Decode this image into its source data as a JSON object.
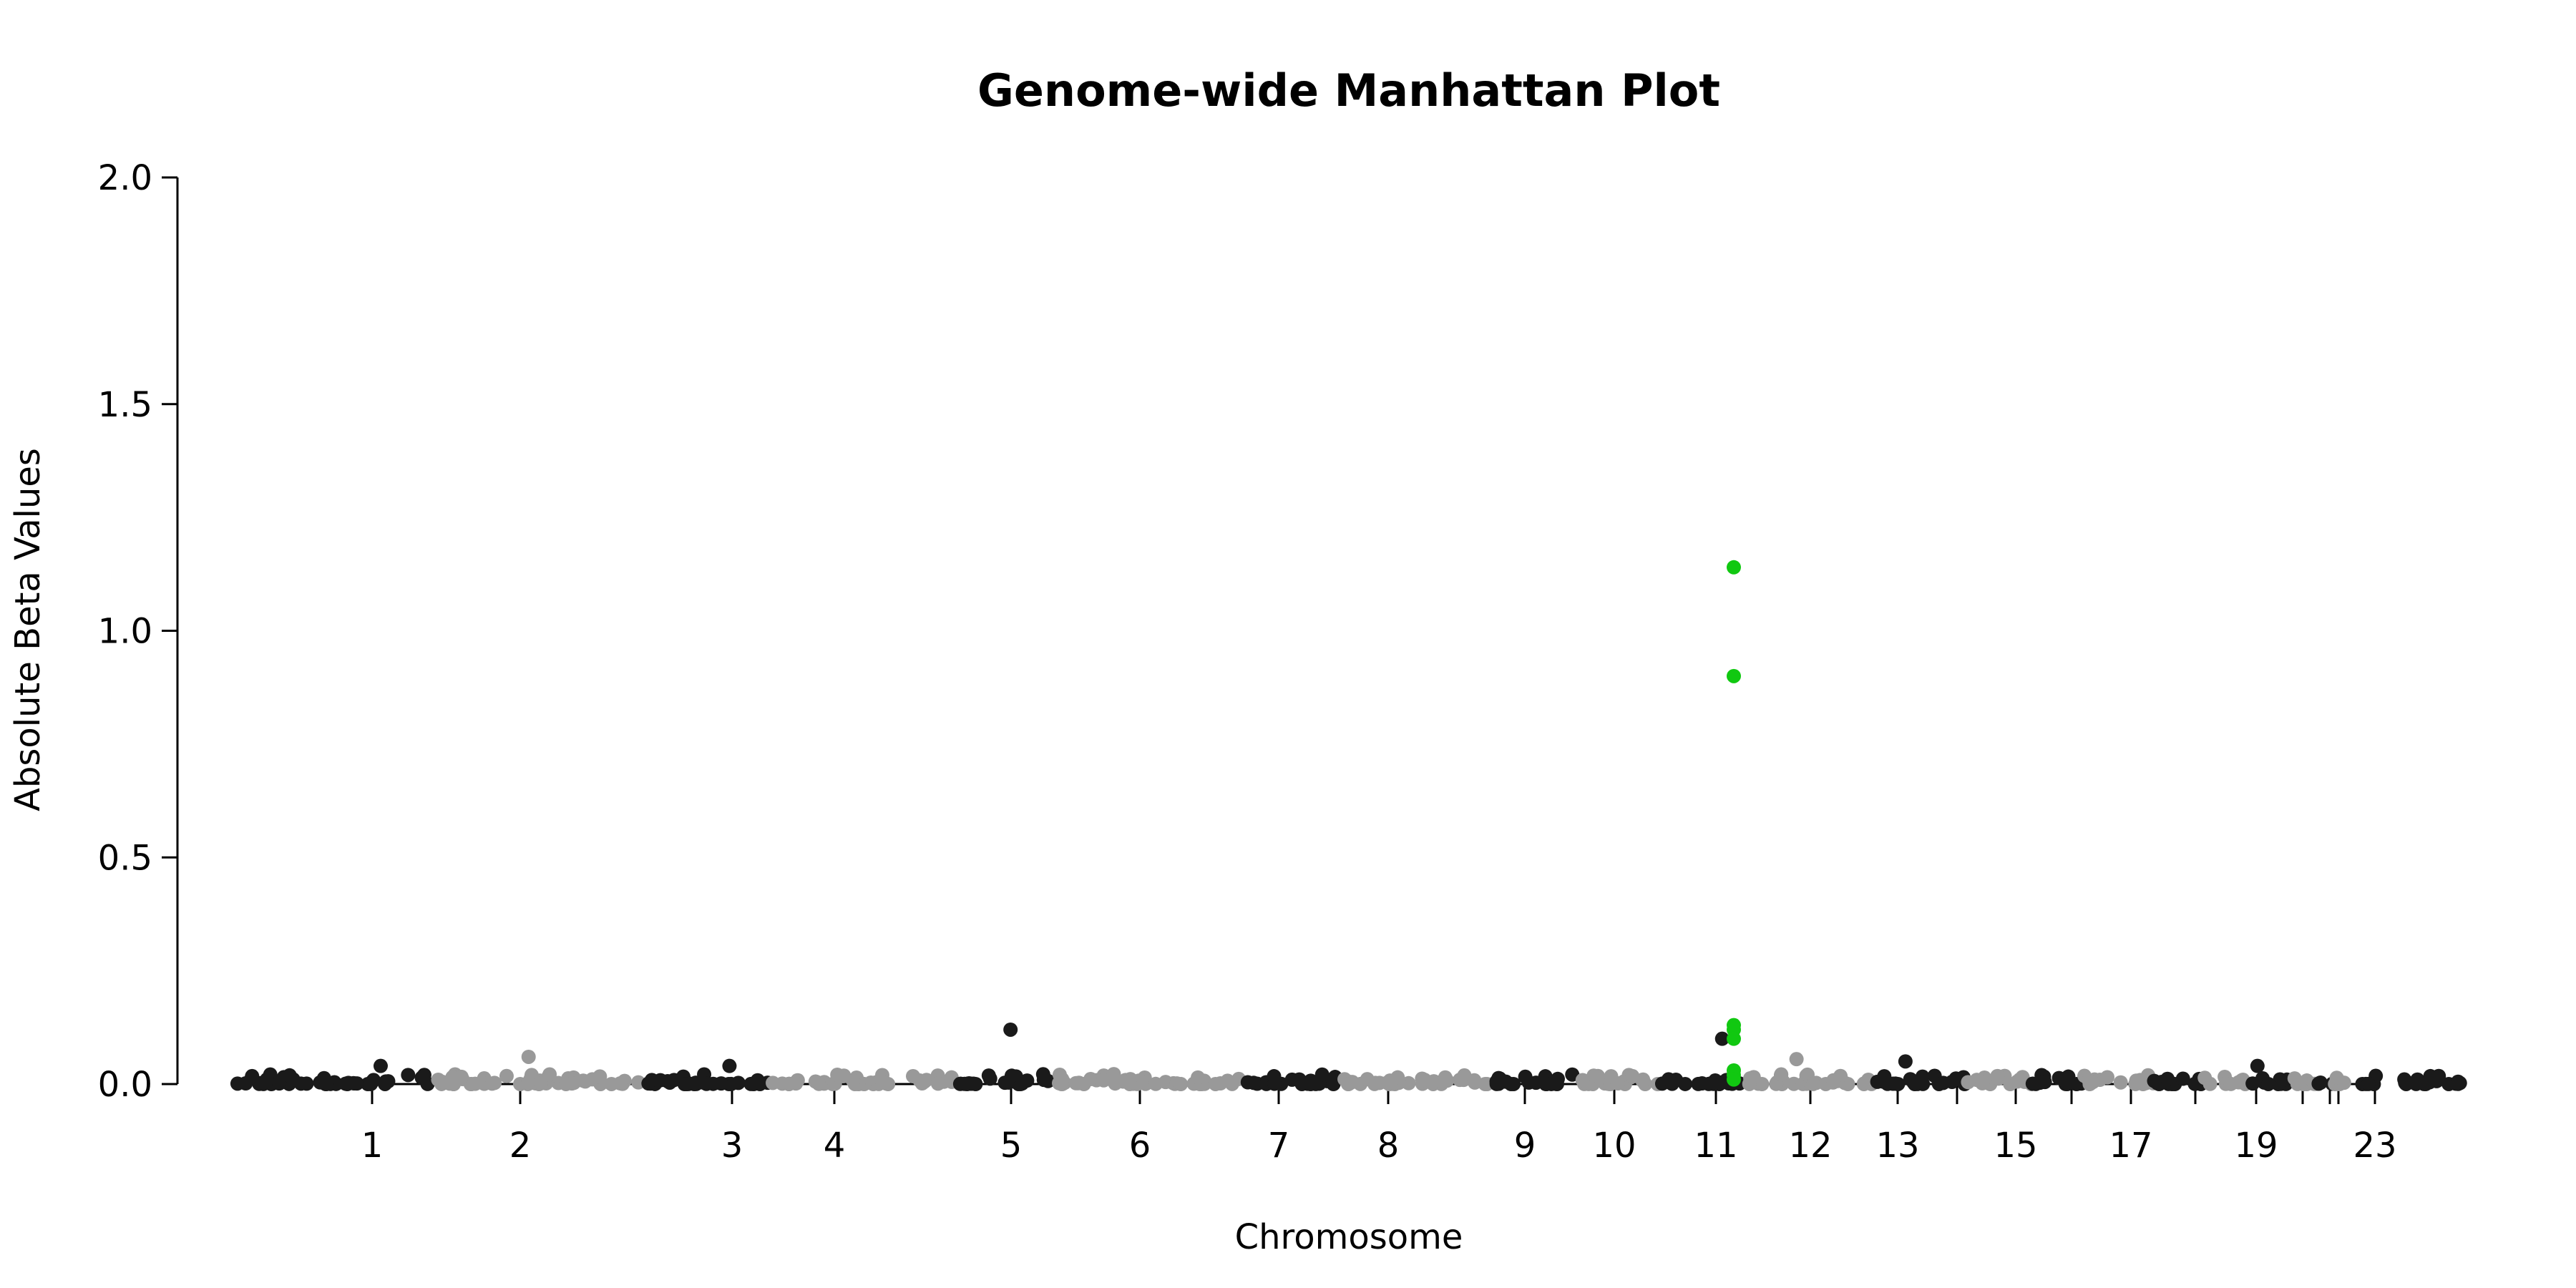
{
  "chart_data": {
    "type": "scatter",
    "title": "Genome-wide Manhattan Plot",
    "xlabel": "Chromosome",
    "ylabel": "Absolute Beta Values",
    "ylim": [
      0,
      2.0
    ],
    "y_ticks": [
      "0.0",
      "0.5",
      "1.0",
      "1.5",
      "2.0"
    ],
    "y_tick_values": [
      0,
      0.5,
      1.0,
      1.5,
      2.0
    ],
    "x_tick_labels": [
      "1",
      "2",
      "3",
      "4",
      "5",
      "6",
      "7",
      "8",
      "9",
      "10",
      "11",
      "12",
      "13",
      "15",
      "17",
      "19",
      "23"
    ],
    "x_tick_chromosomes": [
      1,
      2,
      3,
      4,
      5,
      6,
      7,
      8,
      9,
      10,
      11,
      12,
      13,
      15,
      17,
      19,
      23
    ],
    "x_minor_ticks": [
      14,
      16,
      18,
      20,
      21,
      22
    ],
    "colors": {
      "odd": "#1a1a1a",
      "even": "#999999",
      "highlight": "#11c811"
    },
    "highlighted": [
      {
        "chromosome": 11,
        "values": [
          1.14,
          0.9,
          0.13,
          0.12,
          0.1,
          0.03,
          0.02,
          0.01
        ]
      }
    ],
    "notable_points": [
      {
        "chromosome": 5,
        "value": 0.12
      },
      {
        "chromosome": 11,
        "value": 0.1
      },
      {
        "chromosome": 2,
        "value": 0.06
      },
      {
        "chromosome": 12,
        "value": 0.055
      },
      {
        "chromosome": 13,
        "value": 0.05
      },
      {
        "chromosome": 3,
        "value": 0.04
      },
      {
        "chromosome": 1,
        "value": 0.04
      },
      {
        "chromosome": 19,
        "value": 0.04
      }
    ],
    "baseline_points_note_free": true
  }
}
